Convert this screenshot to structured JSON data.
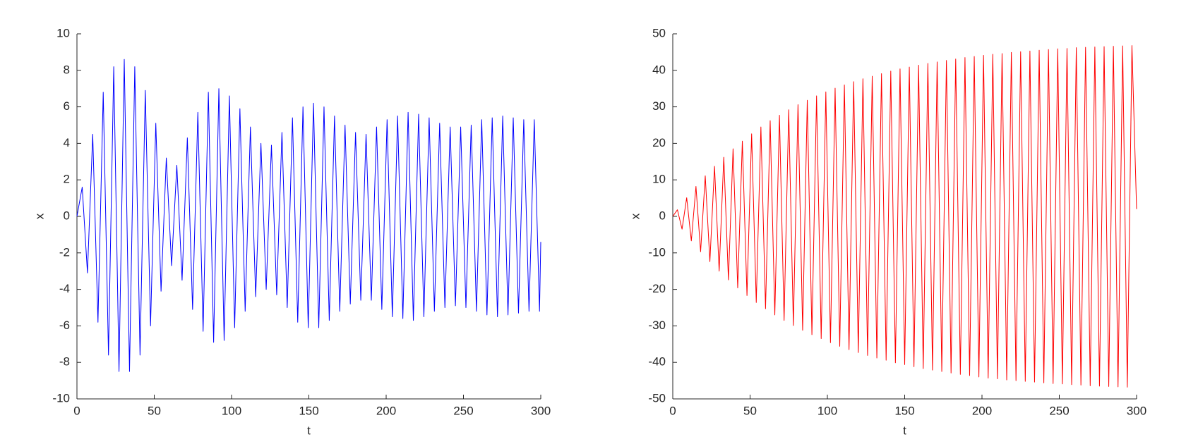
{
  "chart_data": [
    {
      "type": "line",
      "xlabel": "t",
      "ylabel": "x",
      "color": "#0000ff",
      "xlim": [
        0,
        300
      ],
      "xticks": [
        0,
        50,
        100,
        150,
        200,
        250,
        300
      ],
      "ylim": [
        -10,
        10
      ],
      "yticks": [
        -10,
        -8,
        -6,
        -4,
        -2,
        0,
        2,
        4,
        6,
        8,
        10
      ],
      "x": [
        0,
        3.4,
        6.8,
        10.2,
        13.6,
        17,
        20.4,
        23.8,
        27.2,
        30.6,
        34,
        37.4,
        40.8,
        44.2,
        47.6,
        51,
        54.4,
        57.8,
        61.2,
        64.6,
        68,
        71.4,
        74.8,
        78.2,
        81.6,
        85,
        88.4,
        91.8,
        95.2,
        98.6,
        102,
        105.4,
        108.8,
        112.2,
        115.6,
        119,
        122.4,
        125.8,
        129.2,
        132.6,
        136,
        139.4,
        142.8,
        146.2,
        149.6,
        153,
        156.4,
        159.8,
        163.2,
        166.6,
        170,
        173.4,
        176.8,
        180.2,
        183.6,
        187,
        190.4,
        193.8,
        197.2,
        200.6,
        204,
        207.4,
        210.8,
        214.2,
        217.6,
        221,
        224.4,
        227.8,
        231.2,
        234.6,
        238,
        241.4,
        244.8,
        248.2,
        251.6,
        255,
        258.4,
        261.8,
        265.2,
        268.6,
        272,
        275.4,
        278.8,
        282.2,
        285.6,
        289,
        292.4,
        295.8,
        299.2,
        300
      ],
      "values": [
        0,
        1.6,
        -3.1,
        4.5,
        -5.8,
        6.8,
        -7.6,
        8.2,
        -8.5,
        8.6,
        -8.5,
        8.2,
        -7.6,
        6.9,
        -6.0,
        5.1,
        -4.1,
        3.2,
        -2.7,
        2.8,
        -3.5,
        4.3,
        -5.1,
        5.7,
        -6.3,
        6.8,
        -6.9,
        7.0,
        -6.8,
        6.6,
        -6.1,
        5.9,
        -5.2,
        4.9,
        -4.4,
        4.0,
        -4.0,
        3.9,
        -4.3,
        4.6,
        -5.0,
        5.4,
        -5.8,
        6.0,
        -6.1,
        6.2,
        -6.1,
        6.0,
        -5.7,
        5.5,
        -5.2,
        5.0,
        -4.8,
        4.6,
        -4.6,
        4.5,
        -4.6,
        4.9,
        -5.1,
        5.3,
        -5.5,
        5.5,
        -5.6,
        5.7,
        -5.7,
        5.6,
        -5.5,
        5.4,
        -5.2,
        5.1,
        -5.0,
        4.9,
        -4.9,
        4.9,
        -5.0,
        5.0,
        -5.2,
        5.3,
        -5.4,
        5.4,
        -5.5,
        5.5,
        -5.4,
        5.4,
        -5.3,
        5.3,
        -5.2,
        5.3,
        -5.2,
        -1.4
      ]
    },
    {
      "type": "line",
      "xlabel": "t",
      "ylabel": "x",
      "color": "#ff0000",
      "xlim": [
        0,
        300
      ],
      "xticks": [
        0,
        50,
        100,
        150,
        200,
        250,
        300
      ],
      "ylim": [
        -50,
        50
      ],
      "yticks": [
        -50,
        -40,
        -30,
        -20,
        -10,
        0,
        10,
        20,
        30,
        40,
        50
      ],
      "x": [
        0,
        3,
        6,
        9,
        12,
        15,
        18,
        21,
        24,
        27,
        30,
        33,
        36,
        39,
        42,
        45,
        48,
        51,
        54,
        57,
        60,
        63,
        66,
        69,
        72,
        75,
        78,
        81,
        84,
        87,
        90,
        93,
        96,
        99,
        102,
        105,
        108,
        111,
        114,
        117,
        120,
        123,
        126,
        129,
        132,
        135,
        138,
        141,
        144,
        147,
        150,
        153,
        156,
        159,
        162,
        165,
        168,
        171,
        174,
        177,
        180,
        183,
        186,
        189,
        192,
        195,
        198,
        201,
        204,
        207,
        210,
        213,
        216,
        219,
        222,
        225,
        228,
        231,
        234,
        237,
        240,
        243,
        246,
        249,
        252,
        255,
        258,
        261,
        264,
        267,
        270,
        273,
        276,
        279,
        282,
        285,
        288,
        291,
        294,
        297,
        300
      ],
      "values": [
        0,
        1.8,
        -3.5,
        5.1,
        -6.7,
        8.2,
        -9.7,
        11.1,
        -12.4,
        13.7,
        -15.0,
        16.2,
        -17.4,
        18.5,
        -19.6,
        20.6,
        -21.7,
        22.6,
        -23.6,
        24.5,
        -25.3,
        26.2,
        -27.0,
        27.7,
        -28.5,
        29.2,
        -29.9,
        30.6,
        -31.2,
        31.8,
        -32.4,
        33.0,
        -33.5,
        34.1,
        -34.6,
        35.1,
        -35.6,
        36.0,
        -36.5,
        36.9,
        -37.3,
        37.7,
        -38.1,
        38.4,
        -38.8,
        39.1,
        -39.4,
        39.8,
        -40.1,
        40.4,
        -40.6,
        40.9,
        -41.2,
        41.4,
        -41.7,
        41.9,
        -42.1,
        42.3,
        -42.5,
        42.7,
        -42.9,
        43.1,
        -43.3,
        43.5,
        -43.6,
        43.8,
        -44.0,
        44.1,
        -44.3,
        44.4,
        -44.5,
        44.6,
        -44.8,
        44.9,
        -45.0,
        45.1,
        -45.2,
        45.3,
        -45.4,
        45.5,
        -45.6,
        45.7,
        -45.8,
        45.9,
        -45.9,
        46.0,
        -46.1,
        46.2,
        -46.2,
        46.3,
        -46.4,
        46.4,
        -46.5,
        46.5,
        -46.6,
        46.6,
        -46.7,
        46.7,
        -46.8,
        46.8,
        2
      ]
    }
  ]
}
